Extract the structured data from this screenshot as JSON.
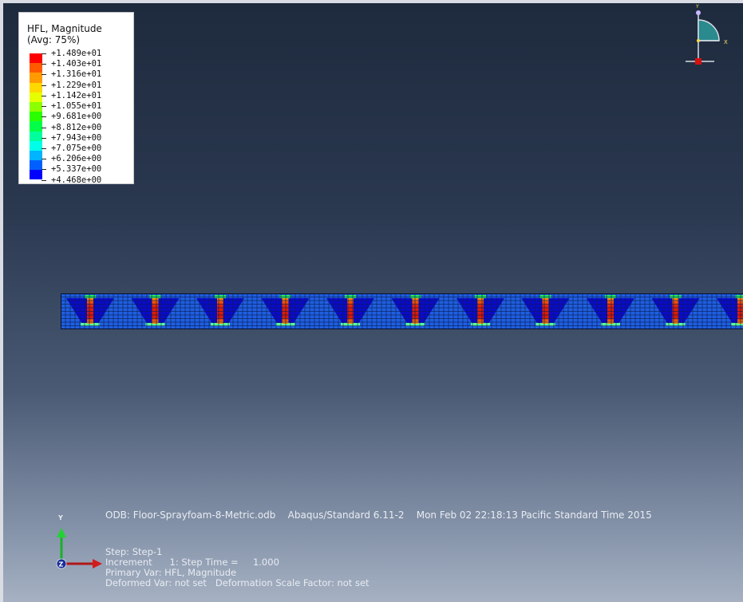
{
  "legend": {
    "title": "HFL, Magnitude",
    "subtitle": "(Avg: 75%)",
    "colors": [
      "#ff0000",
      "#ff5a00",
      "#ff9b00",
      "#ffd800",
      "#e6ff00",
      "#8cff00",
      "#2aff00",
      "#00ff46",
      "#00ff9c",
      "#00ffe8",
      "#00b4ff",
      "#0060ff",
      "#0000ff"
    ],
    "values": [
      "+1.489e+01",
      "+1.403e+01",
      "+1.316e+01",
      "+1.229e+01",
      "+1.142e+01",
      "+1.055e+01",
      "+9.681e+00",
      "+8.812e+00",
      "+7.943e+00",
      "+7.075e+00",
      "+6.206e+00",
      "+5.337e+00",
      "+4.468e+00"
    ]
  },
  "triad_top": {
    "y_label": "Y",
    "x_label": "X",
    "z_label": "Z"
  },
  "triad_bottom": {
    "y_label": "Y",
    "z_label": "Z"
  },
  "info": {
    "odb": "ODB: Floor-Sprayfoam-8-Metric.odb    Abaqus/Standard 6.11-2    Mon Feb 02 22:18:13 Pacific Standard Time 2015",
    "step": "Step: Step-1",
    "increment": "Increment      1: Step Time =     1.000",
    "primary_var": "Primary Var: HFL, Magnitude",
    "deformed_var": "Deformed Var: not set   Deformation Scale Factor: not set"
  },
  "model": {
    "joist_count": 11
  }
}
